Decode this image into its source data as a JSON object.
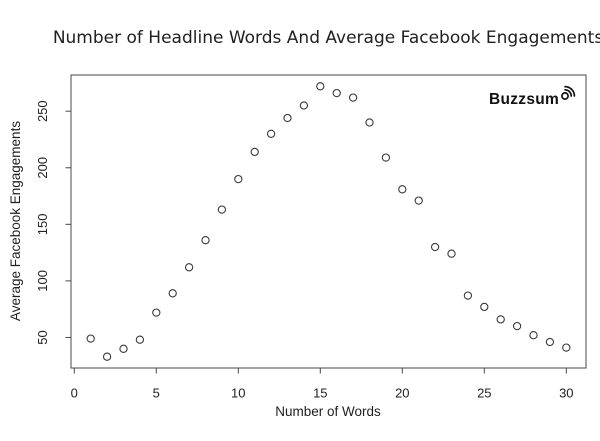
{
  "branding": {
    "name": "Buzzsumo",
    "logo_text_part": "Buzzsum",
    "logo_icon": "o-with-broadcast-waves"
  },
  "chart_data": {
    "type": "scatter",
    "title": "Number of Headline Words And Average Facebook Engagements",
    "xlabel": "Number of Words",
    "ylabel": "Average Facebook Engagements",
    "x": [
      1,
      2,
      3,
      4,
      5,
      6,
      7,
      8,
      9,
      10,
      11,
      12,
      13,
      14,
      15,
      16,
      17,
      18,
      19,
      20,
      21,
      22,
      23,
      24,
      25,
      26,
      27,
      28,
      29,
      30
    ],
    "y": [
      49,
      33,
      40,
      48,
      72,
      89,
      112,
      136,
      163,
      190,
      214,
      230,
      244,
      255,
      272,
      266,
      262,
      240,
      209,
      181,
      171,
      130,
      124,
      87,
      77,
      66,
      60,
      52,
      46,
      41
    ],
    "x_ticks": [
      0,
      5,
      10,
      15,
      20,
      25,
      30
    ],
    "y_ticks": [
      50,
      100,
      150,
      200,
      250
    ],
    "xlim": [
      -0.2,
      31.2
    ],
    "ylim": [
      23,
      282
    ],
    "grid": false,
    "legend": null,
    "point_style": "open-circle",
    "colors": {
      "point_stroke": "#3a3a3a",
      "axis": "#4a4a4a",
      "text": "#1f1f1f",
      "background": "#ffffff",
      "logo": "#111111"
    }
  }
}
